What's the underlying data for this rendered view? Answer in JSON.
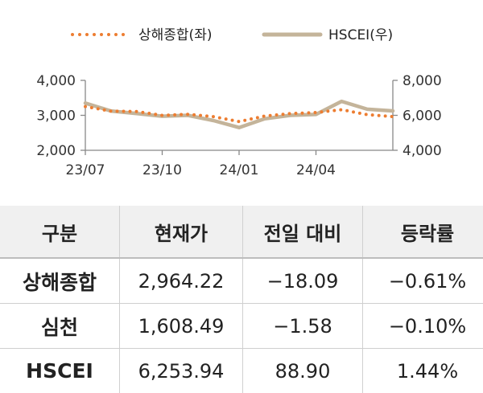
{
  "chart_data": {
    "type": "line",
    "legend": [
      {
        "name": "상해종합(좌)",
        "color": "#ed7d31",
        "style": "dotted"
      },
      {
        "name": "HSCEI(우)",
        "color": "#c4b49a",
        "style": "solid"
      }
    ],
    "legend_placement": "top-center",
    "x_ticks": [
      "23/07",
      "23/10",
      "24/01",
      "24/04"
    ],
    "x_range": [
      "2023-07",
      "2024-07"
    ],
    "left_axis": {
      "ticks": [
        "4,000",
        "3,000",
        "2,000"
      ],
      "ylim": [
        2000,
        4000
      ]
    },
    "right_axis": {
      "ticks": [
        "8,000",
        "6,000",
        "4,000"
      ],
      "ylim": [
        4000,
        8000
      ]
    },
    "grid": false,
    "series": [
      {
        "name": "상해종합(좌)",
        "axis": "left",
        "x": [
          "2023-07",
          "2023-08",
          "2023-09",
          "2023-10",
          "2023-11",
          "2023-12",
          "2024-01",
          "2024-02",
          "2024-03",
          "2024-04",
          "2024-05",
          "2024-06",
          "2024-07"
        ],
        "values": [
          3250,
          3120,
          3110,
          3000,
          3030,
          2960,
          2820,
          2980,
          3050,
          3080,
          3160,
          3020,
          2964
        ]
      },
      {
        "name": "HSCEI(우)",
        "axis": "right",
        "x": [
          "2023-07",
          "2023-08",
          "2023-09",
          "2023-10",
          "2023-11",
          "2023-12",
          "2024-01",
          "2024-02",
          "2024-03",
          "2024-04",
          "2024-05",
          "2024-06",
          "2024-07"
        ],
        "values": [
          6700,
          6250,
          6100,
          5950,
          6000,
          5700,
          5300,
          5800,
          6000,
          6050,
          6800,
          6350,
          6254
        ]
      }
    ]
  },
  "table": {
    "headers": [
      "구분",
      "현재가",
      "전일 대비",
      "등락률"
    ],
    "rows": [
      [
        "상해종합",
        "2,964.22",
        "−18.09",
        "−0.61%"
      ],
      [
        "심천",
        "1,608.49",
        "−1.58",
        "−0.10%"
      ],
      [
        "HSCEI",
        "6,253.94",
        "88.90",
        "1.44%"
      ]
    ]
  }
}
